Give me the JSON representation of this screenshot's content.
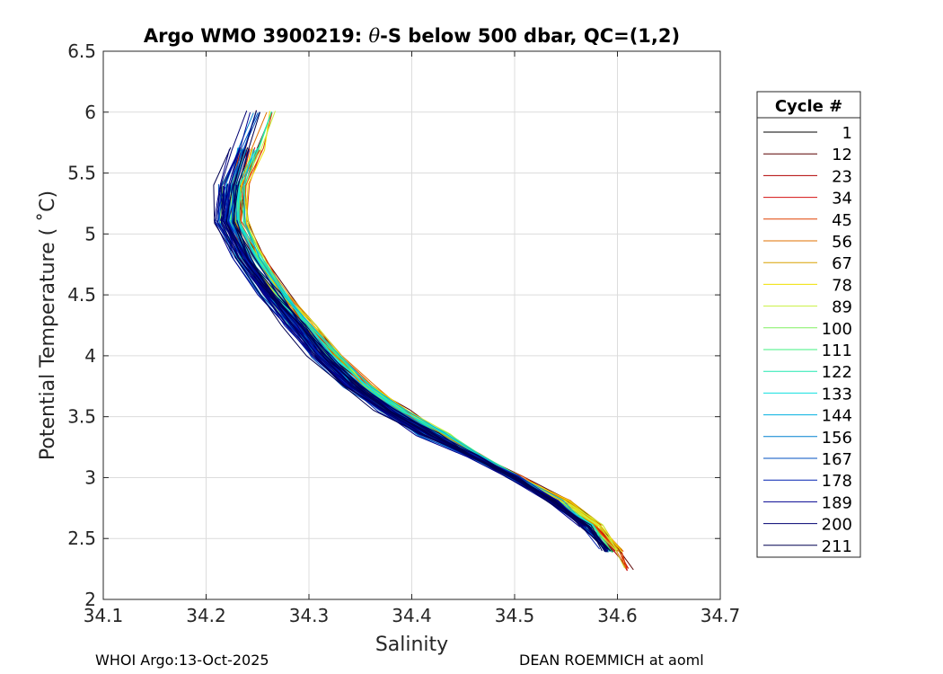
{
  "chart_data": {
    "type": "line",
    "title_prefix": "Argo WMO 3900219: ",
    "title_symbol": "θ",
    "title_suffix": "-S below 500 dbar,  QC=(1,2)",
    "xlabel": "Salinity",
    "ylabel": "Potential Temperature ( ˚C)",
    "xlim": [
      34.1,
      34.7
    ],
    "ylim": [
      2,
      6.5
    ],
    "xticks": [
      34.1,
      34.2,
      34.3,
      34.4,
      34.5,
      34.6,
      34.7
    ],
    "xtick_labels": [
      "34.1",
      "34.2",
      "34.3",
      "34.4",
      "34.5",
      "34.6",
      "34.7"
    ],
    "yticks": [
      2,
      2.5,
      3,
      3.5,
      4,
      4.5,
      5,
      5.5,
      6,
      6.5
    ],
    "ytick_labels": [
      "2",
      "2.5",
      "3",
      "3.5",
      "4",
      "4.5",
      "5",
      "5.5",
      "6",
      "6.5"
    ],
    "grid": true,
    "legend": {
      "title": "Cycle #",
      "placement": "outside-right",
      "entries": [
        {
          "label": "1",
          "color": "#000000"
        },
        {
          "label": "12",
          "color": "#5a0000"
        },
        {
          "label": "23",
          "color": "#b00000"
        },
        {
          "label": "34",
          "color": "#d41010"
        },
        {
          "label": "45",
          "color": "#e04000"
        },
        {
          "label": "56",
          "color": "#e07000"
        },
        {
          "label": "67",
          "color": "#d8a000"
        },
        {
          "label": "78",
          "color": "#f0e000"
        },
        {
          "label": "89",
          "color": "#c8f040"
        },
        {
          "label": "100",
          "color": "#80f060"
        },
        {
          "label": "111",
          "color": "#40f080"
        },
        {
          "label": "122",
          "color": "#20e8b0"
        },
        {
          "label": "133",
          "color": "#10e0e0"
        },
        {
          "label": "144",
          "color": "#00b0e0"
        },
        {
          "label": "156",
          "color": "#0080d0"
        },
        {
          "label": "167",
          "color": "#0050c0"
        },
        {
          "label": "178",
          "color": "#0020b0"
        },
        {
          "label": "189",
          "color": "#000090"
        },
        {
          "label": "200",
          "color": "#000070"
        },
        {
          "label": "211",
          "color": "#000050"
        }
      ]
    },
    "mean_profile": {
      "salinity": [
        34.25,
        34.238,
        34.225,
        34.223,
        34.24,
        34.265,
        34.29,
        34.315,
        34.345,
        34.38,
        34.42,
        34.46,
        34.5,
        34.54,
        34.57,
        34.59,
        34.6
      ],
      "theta": [
        6.0,
        5.7,
        5.4,
        5.1,
        4.8,
        4.5,
        4.25,
        4.0,
        3.75,
        3.55,
        3.35,
        3.18,
        3.0,
        2.8,
        2.6,
        2.4,
        2.25
      ]
    }
  },
  "footer": {
    "left": "WHOI Argo:13-Oct-2025",
    "right": "DEAN ROEMMICH at aoml"
  }
}
